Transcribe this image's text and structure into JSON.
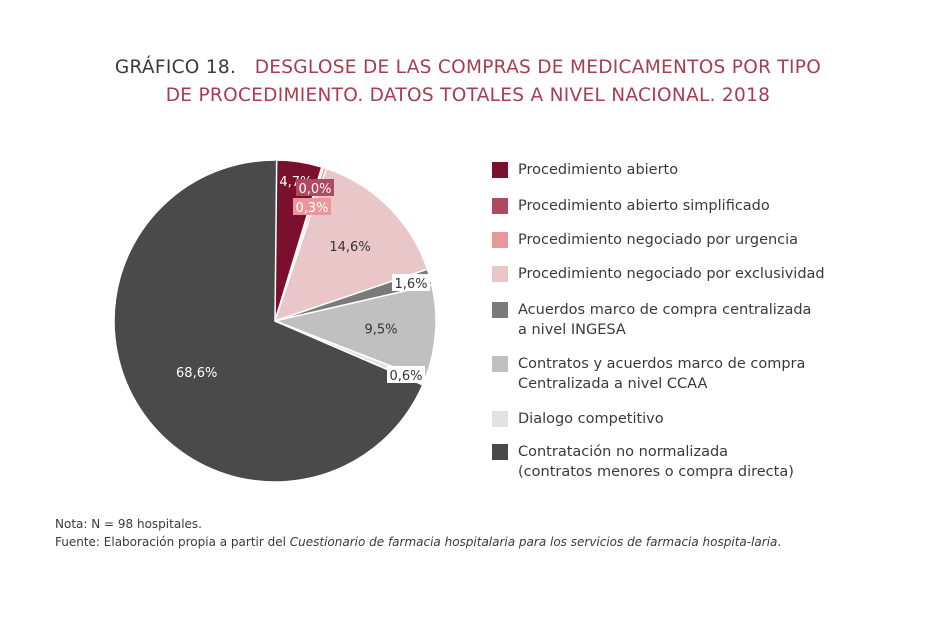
{
  "title": {
    "label": "GRÁFICO 18.",
    "line1": "DESGLOSE DE LAS COMPRAS DE MEDICAMENTOS POR TIPO",
    "line2": "DE PROCEDIMIENTO. DATOS TOTALES A NIVEL NACIONAL. 2018"
  },
  "chart_data": {
    "type": "pie",
    "title": "DESGLOSE DE LAS COMPRAS DE MEDICAMENTOS POR TIPO DE PROCEDIMIENTO. DATOS TOTALES A NIVEL NACIONAL. 2018",
    "legend_position": "right",
    "slices": [
      {
        "name": "Procedimiento abierto",
        "value": 4.7,
        "label": "4,7%",
        "color": "#7b0f2e"
      },
      {
        "name": "Procedimiento abierto simplificado",
        "value": 0.0,
        "label": "0,0%",
        "color": "#b0495f"
      },
      {
        "name": "Procedimiento negociado por urgencia",
        "value": 0.3,
        "label": "0,3%",
        "color": "#e8979c"
      },
      {
        "name": "Procedimiento negociado por exclusividad",
        "value": 14.6,
        "label": "14,6%",
        "color": "#e9c7c9"
      },
      {
        "name": "Acuerdos marco de compra centralizada a nivel INGESA",
        "value": 1.6,
        "label": "1,6%",
        "color": "#7a7a7a"
      },
      {
        "name": "Contratos y acuerdos marco de compra Centralizada a nivel CCAA",
        "value": 9.5,
        "label": "9,5%",
        "color": "#c0c0c0"
      },
      {
        "name": "Dialogo competitivo",
        "value": 0.6,
        "label": "0,6%",
        "color": "#e2e2e2"
      },
      {
        "name": "Contratación no normalizada (contratos menores o compra directa)",
        "value": 68.6,
        "label": "68,6%",
        "color": "#4a4a4a"
      }
    ]
  },
  "legend": [
    {
      "text": "Procedimiento abierto",
      "color": "#7b0f2e"
    },
    {
      "text": "Procedimiento abierto simplificado",
      "color": "#b0495f"
    },
    {
      "text": "Procedimiento negociado por urgencia",
      "color": "#e8979c"
    },
    {
      "text": "Procedimiento negociado por exclusividad",
      "color": "#e9c7c9"
    },
    {
      "text": "Acuerdos marco de compra centralizada\na nivel INGESA",
      "color": "#7a7a7a"
    },
    {
      "text": "Contratos y acuerdos marco de compra\nCentralizada a nivel CCAA",
      "color": "#c0c0c0"
    },
    {
      "text": "Dialogo competitivo",
      "color": "#e2e2e2"
    },
    {
      "text": "Contratación no normalizada\n(contratos menores o compra directa)",
      "color": "#4a4a4a"
    }
  ],
  "notes": {
    "nota": "Nota: N = 98 hospitales.",
    "fuente_prefix": "Fuente: Elaboración propia a partir del ",
    "fuente_italic": "Cuestionario de farmacia hospitalaria para los servicios de farmacia hospita-laria",
    "fuente_suffix": "."
  }
}
